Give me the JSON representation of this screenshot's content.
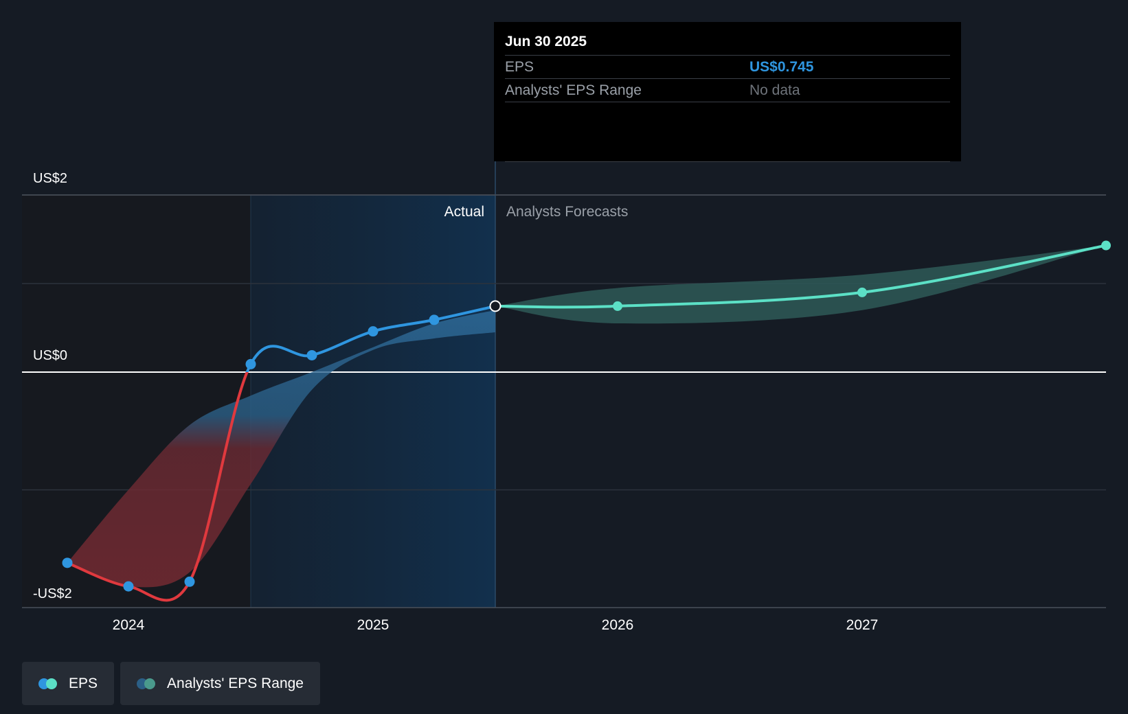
{
  "chart_data": {
    "type": "line",
    "y_ticks": [
      {
        "value": 2,
        "label": "US$2"
      },
      {
        "value": 0,
        "label": "US$0"
      },
      {
        "value": -2,
        "label": "-US$2"
      }
    ],
    "ylim": [
      -2.2,
      2.3
    ],
    "x_ticks": [
      {
        "value": 2024.0,
        "label": "2024"
      },
      {
        "value": 2025.0,
        "label": "2025"
      },
      {
        "value": 2026.0,
        "label": "2026"
      },
      {
        "value": 2027.0,
        "label": "2027"
      }
    ],
    "xlim": [
      2023.57,
      2027.99
    ],
    "regions": {
      "actual_label": "Actual",
      "forecast_label": "Analysts Forecasts",
      "shade_start": 2024.5,
      "divider": 2025.5
    },
    "series": [
      {
        "name": "EPS",
        "x": [
          2023.75,
          2024.0,
          2024.25,
          2024.5,
          2024.75,
          2025.0,
          2025.25,
          2025.5
        ],
        "y": [
          -1.62,
          -1.82,
          -1.78,
          0.09,
          0.19,
          0.46,
          0.59,
          0.745
        ],
        "color_positive": "#2f96e0",
        "color_negative": "#e0393e"
      },
      {
        "name": "EPS forecast",
        "x": [
          2025.5,
          2026.0,
          2027.0,
          2028.0
        ],
        "y": [
          0.745,
          0.745,
          0.9,
          1.43
        ],
        "color": "#5ce0c6"
      }
    ],
    "historical_range": {
      "x": [
        2023.75,
        2024.0,
        2024.25,
        2024.5,
        2024.75,
        2025.0,
        2025.25,
        2025.5
      ],
      "low": [
        -1.62,
        -1.82,
        -1.7,
        -0.95,
        -0.15,
        0.25,
        0.38,
        0.45
      ],
      "high": [
        -1.62,
        -1.0,
        -0.45,
        -0.2,
        0.0,
        0.28,
        0.55,
        0.7
      ]
    },
    "forecast_range": {
      "x": [
        2025.5,
        2026.0,
        2027.0,
        2028.0
      ],
      "low": [
        0.745,
        0.55,
        0.7,
        1.43
      ],
      "high": [
        0.745,
        0.95,
        1.1,
        1.43
      ]
    },
    "tooltip": {
      "date": "Jun 30 2025",
      "rows": [
        {
          "key": "EPS",
          "value": "US$0.745"
        },
        {
          "key": "Analysts' EPS Range",
          "value": "No data"
        }
      ]
    },
    "legend": [
      {
        "label": "EPS",
        "colors": [
          "#2f96e0",
          "#5ce0c6"
        ]
      },
      {
        "label": "Analysts' EPS Range",
        "colors": [
          "#2b5f86",
          "#4a9a8c"
        ]
      }
    ],
    "colors": {
      "background": "#151b24",
      "actual_shade": "#13283d",
      "grid": "#2c333d",
      "zero_line": "#ffffff",
      "forecast_band": "#2e5957",
      "historical_band_negative": "#6b2a33",
      "historical_band_positive": "#2b5f86"
    }
  }
}
